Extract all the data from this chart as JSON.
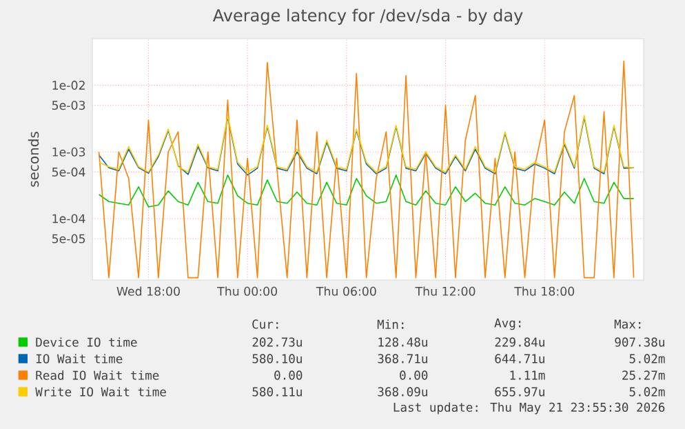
{
  "chart_data": {
    "type": "line",
    "title": "Average latency for /dev/sda - by day",
    "ylabel": "seconds",
    "log": "y",
    "grid": true,
    "legend": "bottom",
    "marker": "none",
    "line_style": "solid",
    "x": [
      "2026-05-20T15:00",
      "2026-05-20T15:36",
      "2026-05-20T16:12",
      "2026-05-20T16:48",
      "2026-05-20T17:24",
      "2026-05-20T18:00",
      "2026-05-20T18:36",
      "2026-05-20T19:12",
      "2026-05-20T19:48",
      "2026-05-20T20:24",
      "2026-05-20T21:00",
      "2026-05-20T21:36",
      "2026-05-20T22:12",
      "2026-05-20T22:48",
      "2026-05-20T23:24",
      "2026-05-21T00:00",
      "2026-05-21T00:36",
      "2026-05-21T01:12",
      "2026-05-21T01:48",
      "2026-05-21T02:24",
      "2026-05-21T03:00",
      "2026-05-21T03:36",
      "2026-05-21T04:12",
      "2026-05-21T04:48",
      "2026-05-21T05:24",
      "2026-05-21T06:00",
      "2026-05-21T06:36",
      "2026-05-21T07:12",
      "2026-05-21T07:48",
      "2026-05-21T08:24",
      "2026-05-21T09:00",
      "2026-05-21T09:36",
      "2026-05-21T10:12",
      "2026-05-21T10:48",
      "2026-05-21T11:24",
      "2026-05-21T12:00",
      "2026-05-21T12:36",
      "2026-05-21T13:12",
      "2026-05-21T13:48",
      "2026-05-21T14:24",
      "2026-05-21T15:00",
      "2026-05-21T15:36",
      "2026-05-21T16:12",
      "2026-05-21T16:48",
      "2026-05-21T17:24",
      "2026-05-21T18:00",
      "2026-05-21T18:36",
      "2026-05-21T19:12",
      "2026-05-21T19:48",
      "2026-05-21T20:24",
      "2026-05-21T21:00",
      "2026-05-21T21:36",
      "2026-05-21T22:12",
      "2026-05-21T22:48",
      "2026-05-21T23:24"
    ],
    "xlim": [
      "2026-05-20T14:36",
      "2026-05-22T00:00"
    ],
    "xticks": [
      {
        "value": "2026-05-20T18:00",
        "label": "Wed 18:00"
      },
      {
        "value": "2026-05-21T00:00",
        "label": "Thu 00:00"
      },
      {
        "value": "2026-05-21T06:00",
        "label": "Thu 06:00"
      },
      {
        "value": "2026-05-21T12:00",
        "label": "Thu 12:00"
      },
      {
        "value": "2026-05-21T18:00",
        "label": "Thu 18:00"
      }
    ],
    "ylim": [
      1.2e-05,
      0.05
    ],
    "yticks": [
      {
        "value": 5e-05,
        "label": "5e-05"
      },
      {
        "value": 0.0001,
        "label": "1e-04"
      },
      {
        "value": 0.0005,
        "label": "5e-04"
      },
      {
        "value": 0.001,
        "label": "1e-03"
      },
      {
        "value": 0.005,
        "label": "5e-03"
      },
      {
        "value": 0.01,
        "label": "1e-02"
      }
    ],
    "series": [
      {
        "name": "Device IO time",
        "color": "#00cc00",
        "values": [
          0.00023,
          0.00018,
          0.00017,
          0.00016,
          0.0003,
          0.00015,
          0.00016,
          0.00026,
          0.00018,
          0.00016,
          0.00035,
          0.00018,
          0.00017,
          0.00045,
          0.00022,
          0.00017,
          0.00016,
          0.00038,
          0.00018,
          0.00017,
          0.00025,
          0.00017,
          0.00016,
          0.00035,
          0.00017,
          0.00016,
          0.0004,
          0.00022,
          0.00017,
          0.00018,
          0.00045,
          0.00018,
          0.00016,
          0.00026,
          0.00017,
          0.00016,
          0.0003,
          0.00018,
          0.00024,
          0.00017,
          0.00016,
          0.0003,
          0.00017,
          0.00016,
          0.0002,
          0.00018,
          0.00016,
          0.00025,
          0.00017,
          0.0004,
          0.00018,
          0.00017,
          0.00035,
          0.0002,
          0.0002
        ]
      },
      {
        "name": "IO Wait time",
        "color": "#0066b3",
        "values": [
          0.0009,
          0.00058,
          0.00052,
          0.0011,
          0.00058,
          0.00048,
          0.00085,
          0.0021,
          0.00062,
          0.00046,
          0.0012,
          0.00058,
          0.00052,
          0.0033,
          0.00066,
          0.00045,
          0.00057,
          0.0024,
          0.00057,
          0.00052,
          0.001,
          0.00057,
          0.00047,
          0.0014,
          0.00057,
          0.00052,
          0.0021,
          0.00066,
          0.00047,
          0.00057,
          0.0024,
          0.00057,
          0.00052,
          0.00095,
          0.00057,
          0.00047,
          0.00085,
          0.00052,
          0.0011,
          0.00057,
          0.00047,
          0.0019,
          0.00057,
          0.00052,
          0.00066,
          0.00057,
          0.00047,
          0.0013,
          0.00057,
          0.0033,
          0.00057,
          0.00047,
          0.0024,
          0.00057,
          0.00058
        ]
      },
      {
        "name": "Read IO Wait time",
        "color": "#ff8000",
        "values": [
          0.001,
          1.3e-05,
          0.001,
          0.0004,
          1.3e-05,
          0.003,
          1.3e-05,
          0.001,
          0.002,
          1.3e-05,
          1.3e-05,
          0.001,
          1.3e-05,
          0.006,
          1.3e-05,
          0.0008,
          1.3e-05,
          0.022,
          0.0005,
          1.3e-05,
          0.003,
          1.3e-05,
          0.002,
          1.3e-05,
          0.0008,
          1.3e-05,
          0.015,
          1.3e-05,
          0.0004,
          0.002,
          1.3e-05,
          0.014,
          1.3e-05,
          0.001,
          1.3e-05,
          0.005,
          1.3e-05,
          0.0015,
          0.007,
          1.3e-05,
          0.0008,
          1.3e-05,
          0.001,
          1.3e-05,
          0.0006,
          0.003,
          1.3e-05,
          0.002,
          0.007,
          1.3e-05,
          1.3e-05,
          0.004,
          1.3e-05,
          0.023,
          1.3e-05
        ]
      },
      {
        "name": "Write IO Wait time",
        "color": "#ffcc00",
        "values": [
          0.0007,
          0.0006,
          0.00055,
          0.0012,
          0.0006,
          0.0005,
          0.0009,
          0.0022,
          0.0006,
          0.0005,
          0.0013,
          0.0006,
          0.00055,
          0.0035,
          0.0007,
          0.0005,
          0.0006,
          0.0025,
          0.0006,
          0.00055,
          0.0011,
          0.0006,
          0.0005,
          0.0015,
          0.0006,
          0.00055,
          0.0022,
          0.0007,
          0.0005,
          0.0006,
          0.0025,
          0.0006,
          0.00055,
          0.001,
          0.0006,
          0.0005,
          0.0009,
          0.00055,
          0.0012,
          0.0006,
          0.0005,
          0.002,
          0.0006,
          0.00055,
          0.0007,
          0.0006,
          0.0005,
          0.0014,
          0.0006,
          0.0035,
          0.0006,
          0.0005,
          0.0025,
          0.0006,
          0.00058
        ]
      }
    ],
    "annotations": [
      "Cur:",
      "Min:",
      "Avg:",
      "Max:",
      "202.73u",
      "128.48u",
      "229.84u",
      "907.38u",
      "580.10u",
      "368.71u",
      "644.71u",
      "5.02m",
      "0.00",
      "0.00",
      "1.11m",
      "25.27m",
      "580.11u",
      "368.09u",
      "655.97u",
      "5.02m",
      "Last update: Thu May 21 23:55:30 2026"
    ]
  }
}
